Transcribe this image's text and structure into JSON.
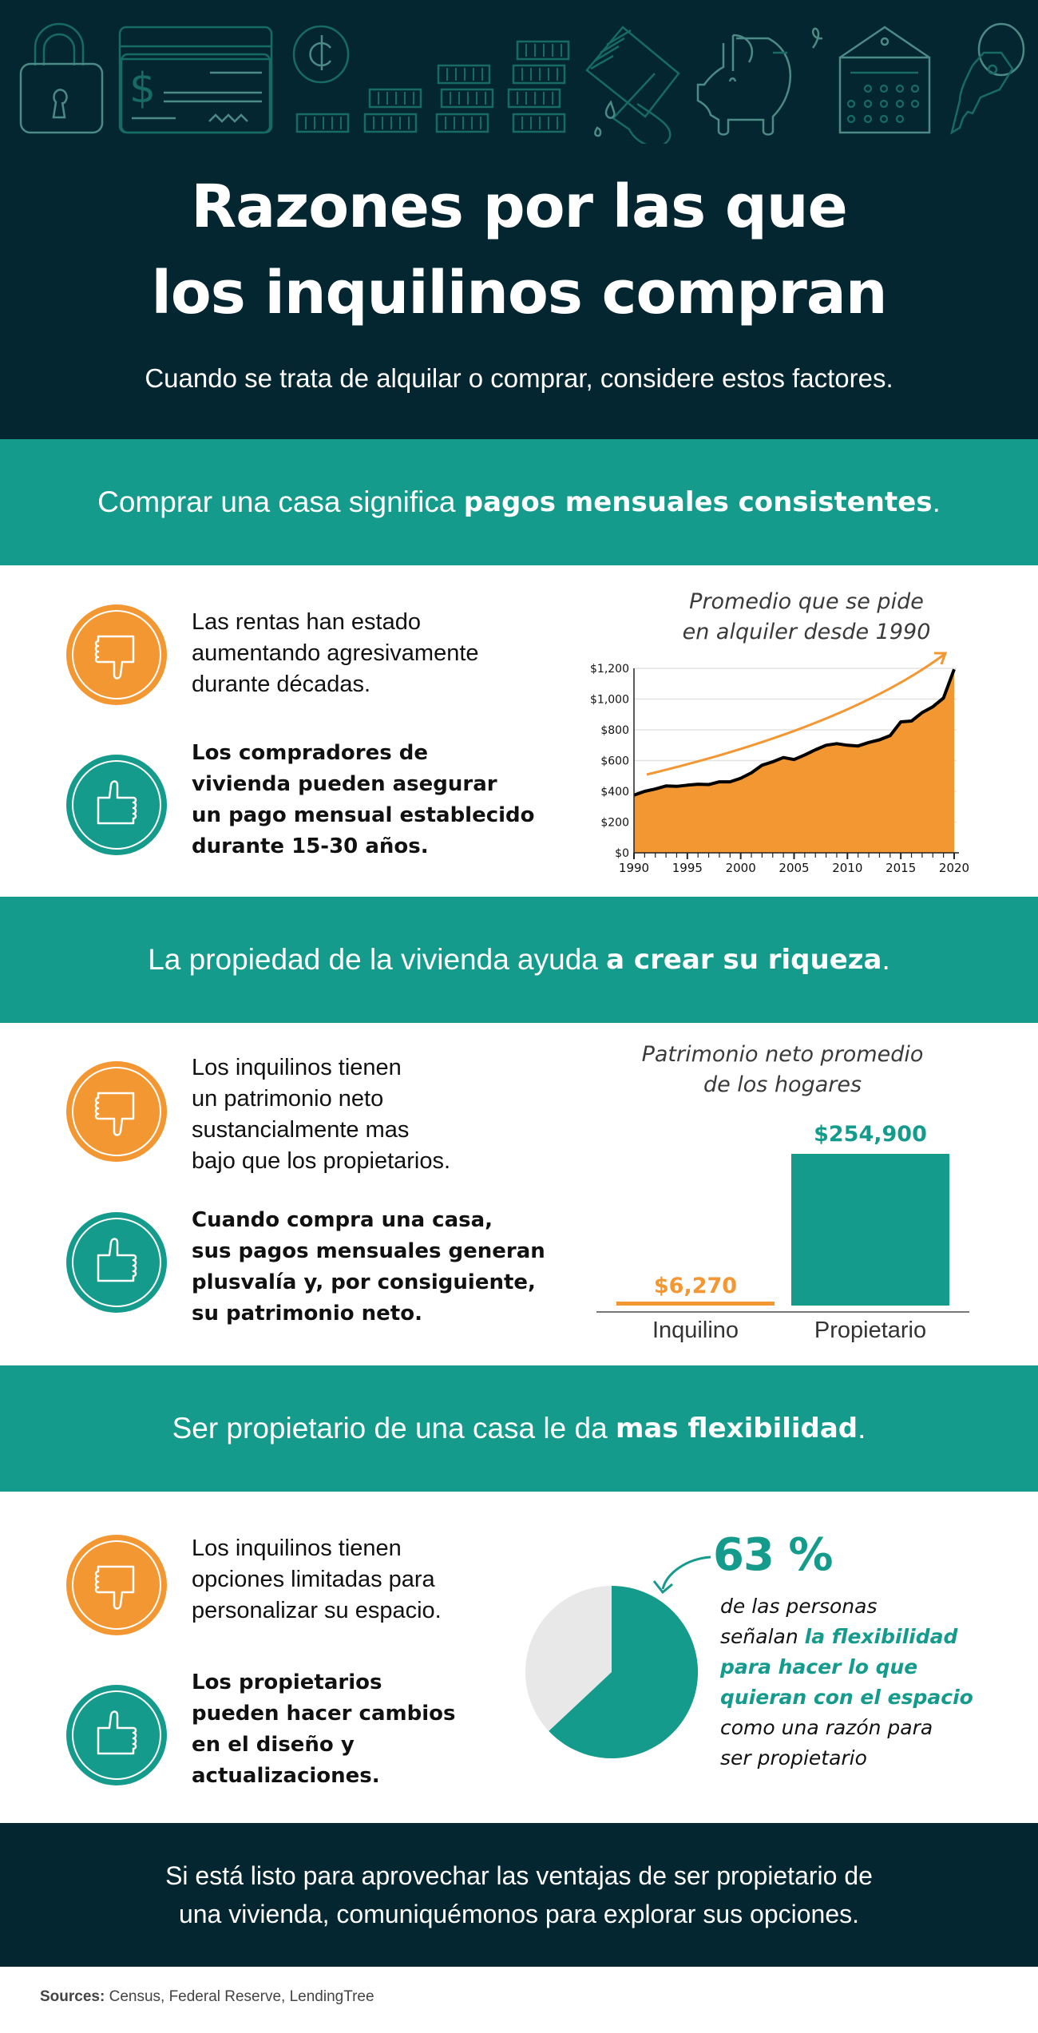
{
  "header": {
    "title_line1": "Razones por las que",
    "title_line2": "los inquilinos compran",
    "subtitle": "Cuando se trata de alquilar o comprar, considere estos factores.",
    "decorative_icons": [
      "padlock-icon",
      "check-icon",
      "cent-coin-icon",
      "coin-stacks-icon",
      "paintbrush-icon",
      "piggy-bank-icon",
      "calendar-icon",
      "key-icon"
    ]
  },
  "sections": [
    {
      "band_text": "Comprar una casa significa ",
      "band_bold": "pagos mensuales consistentes",
      "band_end": ".",
      "negative_point": [
        "Las rentas han estado",
        "aumentando agresivamente",
        "durante décadas."
      ],
      "positive_point": [
        "Los compradores de",
        "vivienda pueden asegurar",
        "un pago mensual establecido",
        "durante 15-30 años."
      ],
      "chart_title": [
        "Promedio que se pide",
        "en alquiler desde 1990"
      ]
    },
    {
      "band_text": "La propiedad de la vivienda ayuda ",
      "band_bold": "a crear su riqueza",
      "band_end": ".",
      "negative_point": [
        "Los inquilinos tienen",
        "un patrimonio neto",
        "sustancialmente mas",
        "bajo que los propietarios."
      ],
      "positive_point": [
        "Cuando compra una casa,",
        "sus pagos mensuales generan",
        "plusvalía y, por consiguiente,",
        "su patrimonio neto."
      ],
      "chart_title": [
        "Patrimonio neto promedio",
        "de los hogares"
      ]
    },
    {
      "band_text": "Ser propietario de una casa le da ",
      "band_bold": "mas flexibilidad",
      "band_end": ".",
      "negative_point": [
        "Los inquilinos tienen",
        "opciones limitadas para",
        "personalizar su espacio."
      ],
      "positive_point": [
        "Los propietarios",
        "pueden hacer cambios",
        "en el diseño y",
        "actualizaciones."
      ],
      "stat_value": "63 %",
      "stat_text_1": [
        "de las personas",
        "señalan "
      ],
      "stat_highlight": [
        "la flexibilidad",
        "para hacer lo que",
        "quieran con el espacio"
      ],
      "stat_text_2": [
        "como una razón para",
        "ser propietario"
      ]
    }
  ],
  "footer": {
    "line1": "Si está listo para aprovechar las ventajas de ser propietario de",
    "line2": "una vivienda, comuniquémonos para explorar sus opciones."
  },
  "sources": {
    "label": "Sources:",
    "text": " Census, Federal Reserve, LendingTree"
  },
  "colors": {
    "dark": "#032630",
    "teal": "#159b8c",
    "orange": "#f39732",
    "pie_grey": "#e8e8e8"
  },
  "chart_data": [
    {
      "type": "area",
      "title": "Promedio que se pide en alquiler desde 1990",
      "xlabel": "",
      "ylabel": "",
      "x": [
        1990,
        1991,
        1992,
        1993,
        1994,
        1995,
        1996,
        1997,
        1998,
        1999,
        2000,
        2001,
        2002,
        2003,
        2004,
        2005,
        2006,
        2007,
        2008,
        2009,
        2010,
        2011,
        2012,
        2013,
        2014,
        2015,
        2016,
        2017,
        2018,
        2019,
        2020
      ],
      "values": [
        375,
        400,
        415,
        435,
        432,
        440,
        446,
        444,
        462,
        462,
        485,
        520,
        570,
        592,
        620,
        607,
        637,
        670,
        700,
        710,
        700,
        695,
        718,
        735,
        762,
        852,
        857,
        912,
        950,
        1007,
        1194
      ],
      "x_ticks": [
        "1990",
        "1995",
        "2000",
        "2005",
        "2010",
        "2015",
        "2020"
      ],
      "y_ticks": [
        "$0",
        "$200",
        "$400",
        "$600",
        "$800",
        "$1,000",
        "$1,200"
      ],
      "ylim": [
        0,
        1200
      ],
      "grid": true,
      "trend_arrow": true
    },
    {
      "type": "bar",
      "title": "Patrimonio neto promedio de los hogares",
      "categories": [
        "Inquilino",
        "Propietario"
      ],
      "values": [
        6270,
        254900
      ],
      "value_labels": [
        "$6,270",
        "$254,900"
      ],
      "colors": [
        "#f39732",
        "#159b8c"
      ]
    },
    {
      "type": "pie",
      "title": "",
      "categories": [
        "Flexibilidad",
        "Otro"
      ],
      "values": [
        63,
        37
      ],
      "colors": [
        "#159b8c",
        "#e8e8e8"
      ],
      "annotation": "63 %"
    }
  ]
}
